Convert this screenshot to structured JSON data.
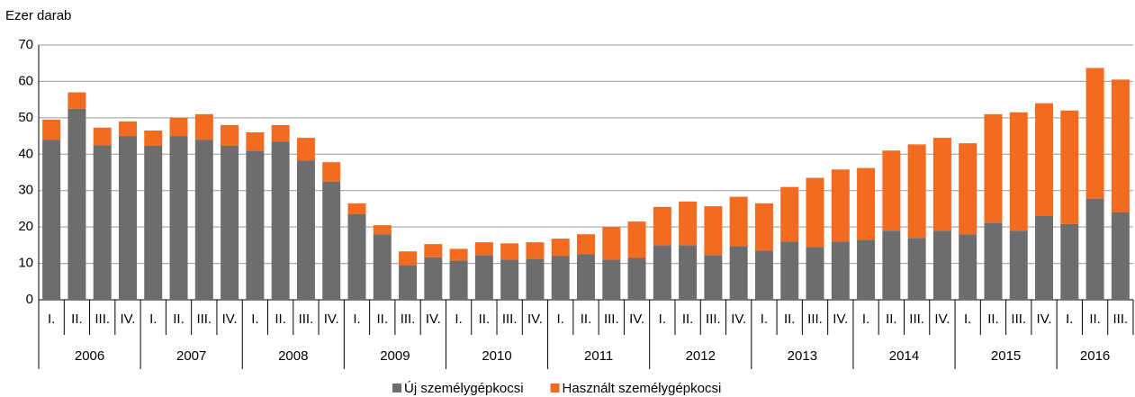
{
  "chart_data": {
    "type": "stacked_bar",
    "y_axis_label": "Ezer darab",
    "categories": [
      "I.",
      "II.",
      "III.",
      "IV.",
      "I.",
      "II.",
      "III.",
      "IV.",
      "I.",
      "II.",
      "III.",
      "IV.",
      "I.",
      "II.",
      "III.",
      "IV.",
      "I.",
      "II.",
      "III.",
      "IV.",
      "I.",
      "II.",
      "III.",
      "IV.",
      "I.",
      "II.",
      "III.",
      "IV.",
      "I.",
      "II.",
      "III.",
      "IV.",
      "I.",
      "II.",
      "III.",
      "IV.",
      "I.",
      "II.",
      "III.",
      "IV.",
      "I.",
      "II.",
      "III."
    ],
    "groups": [
      "2006",
      "2007",
      "2008",
      "2009",
      "2010",
      "2011",
      "2012",
      "2013",
      "2014",
      "2015",
      "2016"
    ],
    "series": [
      {
        "name": "Új személygépkocsi",
        "color": "#6d6d6d",
        "values": [
          44,
          52.5,
          42.5,
          45,
          42.3,
          45,
          44,
          42.3,
          41,
          43.5,
          38.3,
          32.5,
          23.5,
          18,
          9.5,
          11.7,
          10.8,
          12.3,
          11,
          11.3,
          12,
          12.5,
          11,
          11.5,
          15,
          15,
          12.3,
          14.7,
          13.5,
          16,
          14.5,
          16,
          16.5,
          19,
          17,
          19,
          18,
          21.2,
          19,
          23,
          20.8,
          27.8,
          24
        ]
      },
      {
        "name": "Használt személygépkocsi",
        "color": "#f26b21",
        "values": [
          5.5,
          4.5,
          4.8,
          4,
          4.2,
          5,
          7,
          5.7,
          5,
          4.5,
          6.2,
          5.3,
          3,
          2.5,
          3.8,
          3.6,
          3.2,
          3.5,
          4.5,
          4.5,
          4.8,
          5.5,
          9,
          10,
          10.5,
          12,
          13.4,
          13.6,
          13,
          15,
          19,
          19.8,
          19.7,
          22,
          25.7,
          25.5,
          25,
          29.8,
          32.5,
          31,
          31.2,
          35.9,
          36.5
        ]
      }
    ],
    "ylim": [
      0,
      70
    ],
    "yticks": [
      0,
      10,
      20,
      30,
      40,
      50,
      60,
      70
    ],
    "grid": true,
    "legend": "bottom"
  }
}
